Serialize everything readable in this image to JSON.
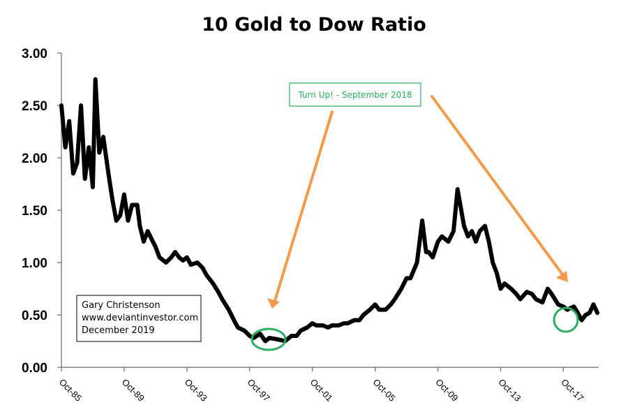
{
  "chart_data": {
    "type": "line",
    "title": "10 Gold to Dow Ratio",
    "xlabel": "",
    "ylabel": "",
    "ylim": [
      0,
      3
    ],
    "y_ticks": [
      "0.00",
      "0.50",
      "1.00",
      "1.50",
      "2.00",
      "2.50",
      "3.00"
    ],
    "x_ticks": [
      "Oct-85",
      "Oct-89",
      "Oct-93",
      "Oct-97",
      "Oct-01",
      "Oct-05",
      "Oct-09",
      "Oct-13",
      "Oct-17"
    ],
    "grid": false,
    "series": [
      {
        "color": "#000000",
        "x": [
          "1985-10",
          "1986-01",
          "1986-04",
          "1986-07",
          "1986-10",
          "1987-01",
          "1987-04",
          "1987-07",
          "1987-10",
          "1987-12",
          "1988-03",
          "1988-06",
          "1988-10",
          "1989-01",
          "1989-04",
          "1989-07",
          "1989-10",
          "1990-01",
          "1990-04",
          "1990-08",
          "1990-10",
          "1991-01",
          "1991-04",
          "1991-08",
          "1991-10",
          "1992-01",
          "1992-06",
          "1992-10",
          "1993-01",
          "1993-04",
          "1993-07",
          "1993-10",
          "1994-01",
          "1994-06",
          "1994-10",
          "1995-01",
          "1995-06",
          "1995-10",
          "1996-01",
          "1996-06",
          "1996-10",
          "1997-01",
          "1997-06",
          "1997-10",
          "1998-01",
          "1998-06",
          "1998-10",
          "1999-01",
          "1999-06",
          "1999-10",
          "2000-01",
          "2000-06",
          "2000-10",
          "2001-01",
          "2001-06",
          "2001-10",
          "2002-01",
          "2002-06",
          "2002-10",
          "2003-01",
          "2003-06",
          "2003-10",
          "2004-01",
          "2004-06",
          "2004-10",
          "2005-01",
          "2005-06",
          "2005-10",
          "2006-01",
          "2006-06",
          "2006-10",
          "2007-01",
          "2007-06",
          "2007-10",
          "2008-01",
          "2008-06",
          "2008-10",
          "2009-01",
          "2009-03",
          "2009-06",
          "2009-10",
          "2010-01",
          "2010-06",
          "2010-10",
          "2011-01",
          "2011-06",
          "2011-09",
          "2011-12",
          "2012-03",
          "2012-06",
          "2012-10",
          "2013-01",
          "2013-04",
          "2013-07",
          "2013-10",
          "2014-01",
          "2014-06",
          "2014-10",
          "2015-01",
          "2015-06",
          "2015-10",
          "2016-01",
          "2016-06",
          "2016-10",
          "2017-01",
          "2017-06",
          "2017-10",
          "2018-01",
          "2018-06",
          "2018-09",
          "2018-12",
          "2019-03",
          "2019-06",
          "2019-09",
          "2019-12"
        ],
        "values": [
          2.5,
          2.1,
          2.35,
          1.85,
          1.95,
          2.5,
          1.8,
          2.1,
          1.72,
          2.75,
          2.05,
          2.2,
          1.85,
          1.6,
          1.4,
          1.45,
          1.65,
          1.4,
          1.55,
          1.55,
          1.35,
          1.2,
          1.3,
          1.2,
          1.15,
          1.05,
          1.0,
          1.05,
          1.1,
          1.05,
          1.02,
          1.05,
          0.98,
          1.0,
          0.95,
          0.88,
          0.8,
          0.72,
          0.65,
          0.55,
          0.45,
          0.38,
          0.35,
          0.3,
          0.28,
          0.32,
          0.25,
          0.28,
          0.27,
          0.26,
          0.25,
          0.3,
          0.3,
          0.35,
          0.38,
          0.42,
          0.4,
          0.4,
          0.38,
          0.4,
          0.4,
          0.42,
          0.42,
          0.45,
          0.45,
          0.5,
          0.55,
          0.6,
          0.55,
          0.55,
          0.6,
          0.65,
          0.75,
          0.85,
          0.85,
          1.0,
          1.4,
          1.1,
          1.1,
          1.05,
          1.2,
          1.25,
          1.2,
          1.3,
          1.7,
          1.35,
          1.25,
          1.3,
          1.2,
          1.3,
          1.35,
          1.2,
          1.0,
          0.9,
          0.75,
          0.8,
          0.75,
          0.7,
          0.65,
          0.72,
          0.7,
          0.65,
          0.62,
          0.75,
          0.7,
          0.6,
          0.58,
          0.55,
          0.58,
          0.52,
          0.45,
          0.5,
          0.52,
          0.6,
          0.52
        ]
      }
    ],
    "annotations": [
      {
        "text": "Turn Up! - September 2018",
        "color": "#27ae60"
      }
    ],
    "credit": [
      "Gary Christenson",
      "www.deviantinvestor.com",
      "December 2019"
    ],
    "colors": {
      "line": "#000000",
      "arrow": "#f39a4b",
      "highlight": "#27ae60"
    }
  }
}
